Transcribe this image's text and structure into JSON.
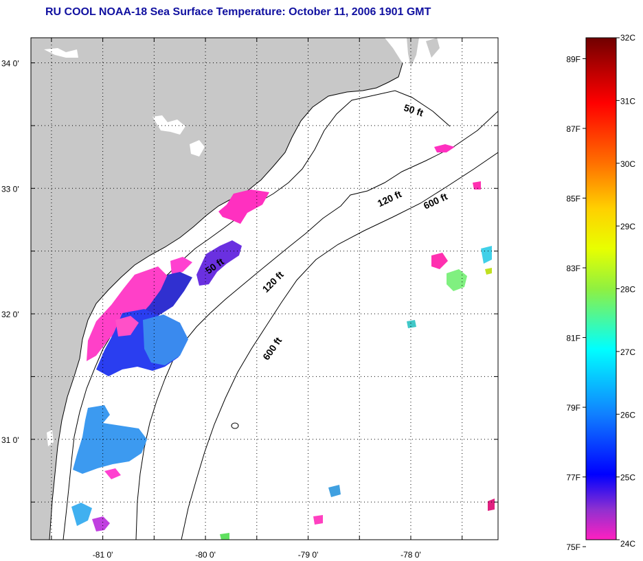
{
  "title": "RU COOL  NOAA-18  Sea Surface Temperature:  October 11, 2006 1901 GMT",
  "map": {
    "lat_labels": [
      "34 0'",
      "33 0'",
      "32 0'",
      "31 0'"
    ],
    "lon_labels": [
      "-81 0'",
      "-80 0'",
      "-79 0'",
      "-78 0'"
    ],
    "lat_range": [
      30.2,
      34.2
    ],
    "lon_range": [
      -81.7,
      -77.15
    ],
    "contour_labels": [
      "50 ft",
      "120 ft",
      "600 ft",
      "50 ft",
      "120 ft",
      "600 ft"
    ],
    "colors": {
      "land": "#c8c8c8",
      "ocean": "#ffffff",
      "cloud": "#ffffff"
    }
  },
  "colorbar": {
    "celsius_labels": [
      "32C",
      "31C",
      "30C",
      "29C",
      "28C",
      "27C",
      "26C",
      "25C",
      "24C"
    ],
    "fahrenheit_labels": [
      "89F",
      "87F",
      "85F",
      "83F",
      "81F",
      "79F",
      "77F",
      "75F"
    ],
    "celsius_range": [
      24,
      32
    ]
  }
}
